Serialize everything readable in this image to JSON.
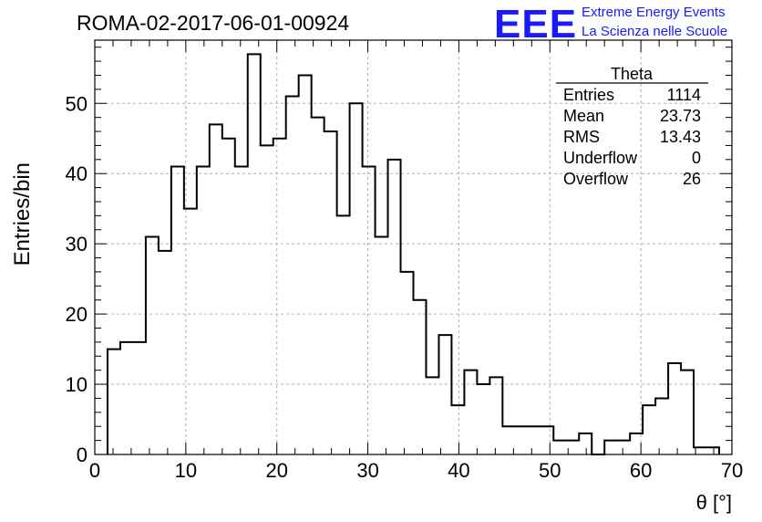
{
  "run_title": "ROMA-02-2017-06-01-00924",
  "logo": {
    "mark": "EEE",
    "line1": "Extreme Energy Events",
    "line2": "La Scienza nelle Scuole",
    "color": "#1a1aff"
  },
  "stats_box": {
    "title": "Theta",
    "rows": [
      {
        "label": "Entries",
        "value": "1114"
      },
      {
        "label": "Mean",
        "value": "23.73"
      },
      {
        "label": "RMS",
        "value": "13.43"
      },
      {
        "label": "Underflow",
        "value": "0"
      },
      {
        "label": "Overflow",
        "value": "26"
      }
    ]
  },
  "chart_data": {
    "type": "histogram",
    "xlabel": "θ [°]",
    "ylabel": "Entries/bin",
    "xlim": [
      0,
      70
    ],
    "ylim": [
      0,
      59
    ],
    "grid": true,
    "line_color": "#000000",
    "bin_width": 1.4,
    "bin_start": 1.4,
    "x_ticks": [
      "0",
      "10",
      "20",
      "30",
      "40",
      "50",
      "60",
      "70"
    ],
    "y_ticks": [
      "0",
      "10",
      "20",
      "30",
      "40",
      "50"
    ],
    "values": [
      15,
      16,
      16,
      31,
      29,
      41,
      35,
      41,
      47,
      45,
      41,
      57,
      44,
      45,
      51,
      54,
      48,
      46,
      34,
      50,
      41,
      31,
      42,
      26,
      22,
      11,
      17,
      7,
      12,
      10,
      11,
      4,
      4,
      4,
      4,
      2,
      2,
      3,
      0,
      2,
      2,
      3,
      7,
      8,
      13,
      12,
      1,
      1
    ]
  }
}
